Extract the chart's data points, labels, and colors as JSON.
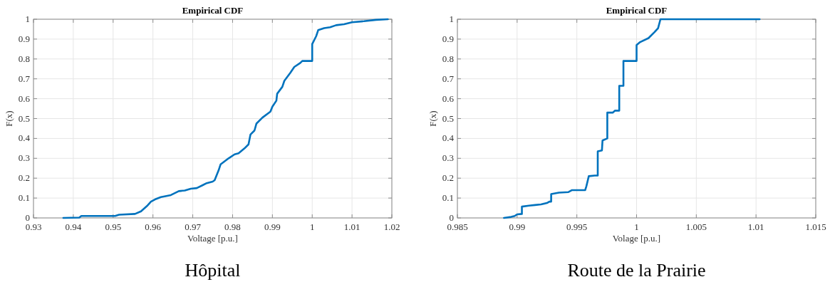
{
  "chart_data": [
    {
      "type": "line",
      "title": "Empirical CDF",
      "xlabel": "Voltage [p.u.]",
      "ylabel": "F(x)",
      "xlim": [
        0.93,
        1.02
      ],
      "ylim": [
        0,
        1
      ],
      "xticks": [
        0.93,
        0.94,
        0.95,
        0.96,
        0.97,
        0.98,
        0.99,
        1,
        1.01,
        1.02
      ],
      "yticks": [
        0,
        0.1,
        0.2,
        0.3,
        0.4,
        0.5,
        0.6,
        0.7,
        0.8,
        0.9,
        1
      ],
      "grid": true,
      "annotations": [
        "Hôpital"
      ],
      "series": [
        {
          "color": "#0072bd",
          "x": [
            0.9375,
            0.9415,
            0.942,
            0.9505,
            0.9515,
            0.9555,
            0.957,
            0.9585,
            0.9595,
            0.9605,
            0.962,
            0.9645,
            0.9665,
            0.968,
            0.9695,
            0.971,
            0.9725,
            0.9735,
            0.975,
            0.9755,
            0.9765,
            0.977,
            0.979,
            0.9805,
            0.9815,
            0.983,
            0.984,
            0.9845,
            0.9855,
            0.986,
            0.9875,
            0.9895,
            0.99,
            0.991,
            0.9912,
            0.9925,
            0.993,
            0.9945,
            0.9955,
            0.997,
            0.9975,
            1.0,
            1.0,
            1.001,
            1.0015,
            1.003,
            1.0045,
            1.006,
            1.008,
            1.01,
            1.013,
            1.016,
            1.019
          ],
          "values": [
            0,
            0.002,
            0.01,
            0.01,
            0.016,
            0.02,
            0.033,
            0.06,
            0.082,
            0.093,
            0.105,
            0.115,
            0.135,
            0.138,
            0.147,
            0.15,
            0.165,
            0.175,
            0.183,
            0.19,
            0.24,
            0.27,
            0.3,
            0.32,
            0.325,
            0.35,
            0.37,
            0.42,
            0.44,
            0.475,
            0.505,
            0.535,
            0.56,
            0.59,
            0.625,
            0.66,
            0.69,
            0.73,
            0.76,
            0.78,
            0.79,
            0.79,
            0.875,
            0.915,
            0.945,
            0.955,
            0.96,
            0.97,
            0.975,
            0.985,
            0.99,
            0.997,
            1.0
          ]
        }
      ]
    },
    {
      "type": "line",
      "title": "Empirical CDF",
      "xlabel": "Volage [p.u.]",
      "ylabel": "F(x)",
      "xlim": [
        0.985,
        1.015
      ],
      "ylim": [
        0,
        1
      ],
      "xticks": [
        0.985,
        0.99,
        0.995,
        1,
        1.005,
        1.01,
        1.015
      ],
      "yticks": [
        0,
        0.1,
        0.2,
        0.3,
        0.4,
        0.5,
        0.6,
        0.7,
        0.8,
        0.9,
        1
      ],
      "grid": true,
      "annotations": [
        "Route de la Prairie"
      ],
      "series": [
        {
          "color": "#0072bd",
          "x": [
            0.9889,
            0.9895,
            0.9898,
            0.99,
            0.9904,
            0.9904,
            0.991,
            0.9915,
            0.992,
            0.9925,
            0.9927,
            0.99285,
            0.99285,
            0.9935,
            0.9943,
            0.9946,
            0.9957,
            0.9958,
            0.996,
            0.9965,
            0.99675,
            0.99675,
            0.9971,
            0.99715,
            0.99755,
            0.99755,
            0.998,
            0.9982,
            0.99855,
            0.99855,
            0.9989,
            0.9989,
            1.0,
            1.0,
            1.0003,
            1.001,
            1.0015,
            1.0018,
            1.002,
            1.0103
          ],
          "values": [
            0,
            0.005,
            0.01,
            0.018,
            0.02,
            0.057,
            0.062,
            0.065,
            0.068,
            0.075,
            0.082,
            0.082,
            0.12,
            0.127,
            0.13,
            0.14,
            0.14,
            0.16,
            0.21,
            0.213,
            0.213,
            0.335,
            0.34,
            0.39,
            0.4,
            0.53,
            0.53,
            0.54,
            0.54,
            0.665,
            0.665,
            0.79,
            0.79,
            0.87,
            0.885,
            0.905,
            0.935,
            0.955,
            1.0,
            1.0
          ]
        }
      ]
    }
  ]
}
